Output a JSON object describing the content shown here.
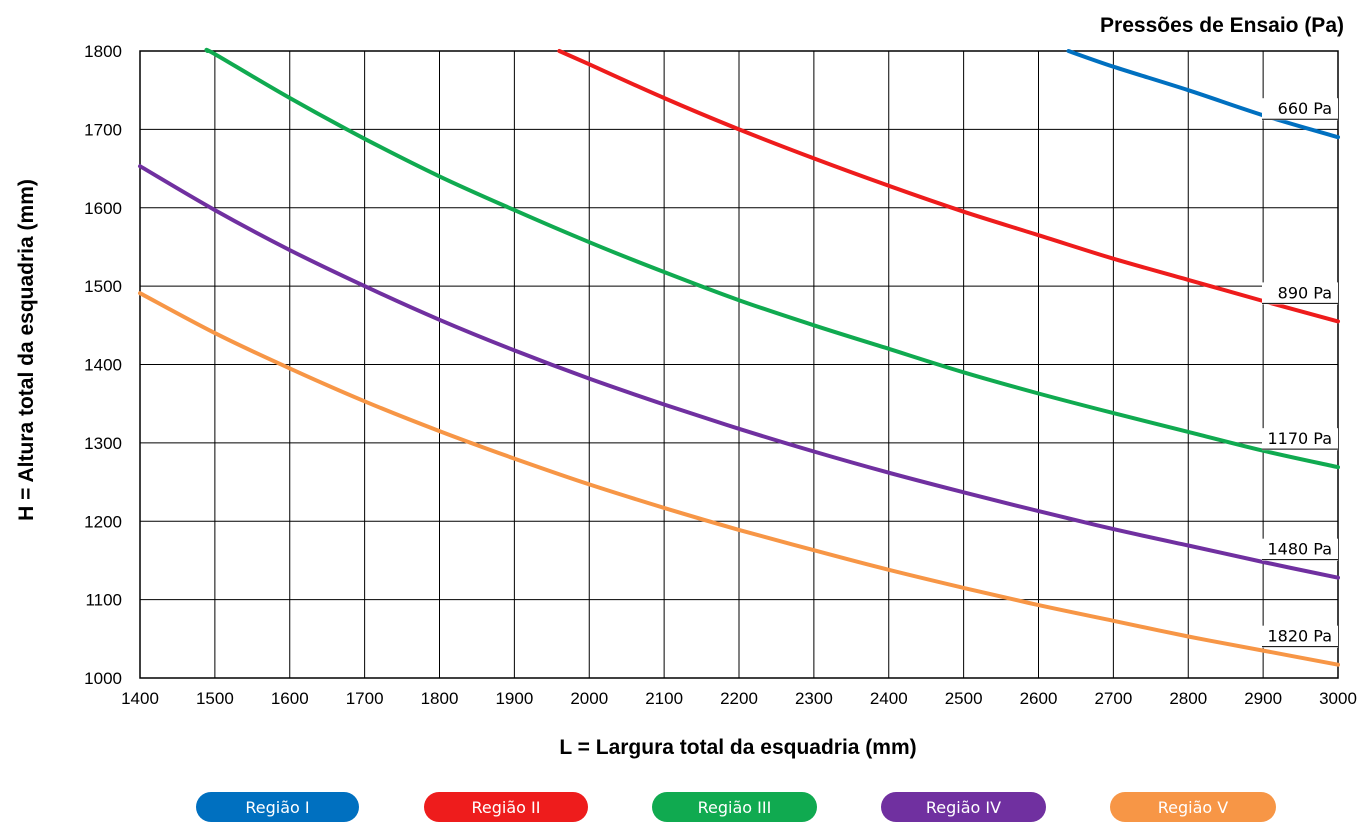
{
  "chart_data": {
    "type": "line",
    "title": "Pressões de Ensaio (Pa)",
    "xlabel": "L = Largura total da esquadria (mm)",
    "ylabel": "H = Altura total da esquadria (mm)",
    "xlim": [
      1400,
      3000
    ],
    "ylim": [
      1000,
      1800
    ],
    "xticks": [
      "1400",
      "1500",
      "1600",
      "1700",
      "1800",
      "1900",
      "2000",
      "2100",
      "2200",
      "2300",
      "2400",
      "2500",
      "2600",
      "2700",
      "2800",
      "2900",
      "3000"
    ],
    "yticks": [
      "1000",
      "1100",
      "1200",
      "1300",
      "1400",
      "1500",
      "1600",
      "1700",
      "1800"
    ],
    "grid": true,
    "series": [
      {
        "name": "660 Pa",
        "color": "#0070C0",
        "x": [
          2640,
          2700,
          2800,
          2900,
          3000
        ],
        "y": [
          1800,
          1780,
          1750,
          1718,
          1690
        ]
      },
      {
        "name": "890 Pa",
        "color": "#EE1C1C",
        "x": [
          1960,
          2000,
          2100,
          2200,
          2300,
          2400,
          2500,
          2600,
          2700,
          2800,
          2900,
          3000
        ],
        "y": [
          1800,
          1783,
          1740,
          1700,
          1663,
          1628,
          1595,
          1565,
          1535,
          1508,
          1481,
          1455
        ]
      },
      {
        "name": "1170 Pa",
        "color": "#10AA50",
        "x": [
          1490,
          1500,
          1600,
          1700,
          1800,
          1900,
          2000,
          2100,
          2200,
          2300,
          2400,
          2500,
          2600,
          2700,
          2800,
          2900,
          3000
        ],
        "y": [
          1800,
          1796,
          1740,
          1688,
          1640,
          1597,
          1556,
          1518,
          1482,
          1450,
          1420,
          1390,
          1363,
          1338,
          1314,
          1290,
          1269
        ]
      },
      {
        "name": "1480 Pa",
        "color": "#7030A0",
        "x": [
          1400,
          1500,
          1600,
          1700,
          1800,
          1900,
          2000,
          2100,
          2200,
          2300,
          2400,
          2500,
          2600,
          2700,
          2800,
          2900,
          3000
        ],
        "y": [
          1653,
          1597,
          1546,
          1500,
          1457,
          1418,
          1382,
          1349,
          1318,
          1289,
          1262,
          1237,
          1213,
          1190,
          1169,
          1148,
          1128
        ]
      },
      {
        "name": "1820 Pa",
        "color": "#F79646",
        "x": [
          1400,
          1500,
          1600,
          1700,
          1800,
          1900,
          2000,
          2100,
          2200,
          2300,
          2400,
          2500,
          2600,
          2700,
          2800,
          2900,
          3000
        ],
        "y": [
          1491,
          1440,
          1395,
          1353,
          1315,
          1280,
          1247,
          1217,
          1189,
          1163,
          1138,
          1115,
          1093,
          1073,
          1053,
          1035,
          1017
        ]
      }
    ],
    "legend": [
      {
        "label": "Região I",
        "color": "#0070C0"
      },
      {
        "label": "Região II",
        "color": "#EE1C1C"
      },
      {
        "label": "Região III",
        "color": "#10AA50"
      },
      {
        "label": "Região IV",
        "color": "#7030A0"
      },
      {
        "label": "Região V",
        "color": "#F79646"
      }
    ]
  }
}
